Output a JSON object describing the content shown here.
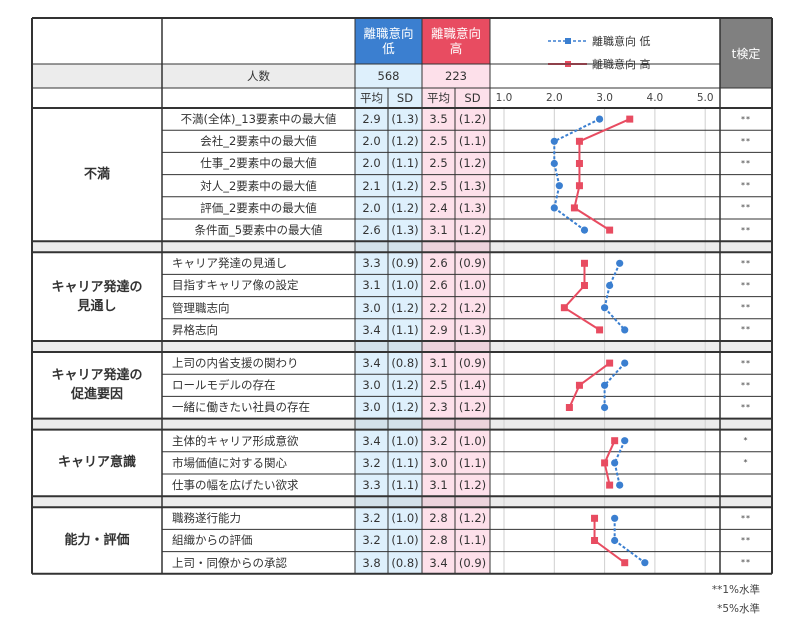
{
  "header": {
    "group_low_label": "離職意向\n低",
    "group_low_line1": "離職意向",
    "group_low_line2": "低",
    "group_high_line1": "離職意向",
    "group_high_line2": "高",
    "n_label": "人数",
    "n_low": "568",
    "n_high": "223",
    "mean_label": "平均",
    "sd_label": "SD",
    "ttest_label": "t検定",
    "legend_low": "離職意向 低",
    "legend_high": "離職意向 高",
    "axis_ticks": [
      "1.0",
      "2.0",
      "3.0",
      "4.0",
      "5.0"
    ]
  },
  "colors": {
    "low": "#3b7fd0",
    "high": "#e84c61",
    "low_bg": "#def0fc",
    "high_bg": "#fde0ea",
    "ttest_header": "#808080"
  },
  "groups": [
    {
      "category": "不満",
      "items": [
        {
          "label": "不満(全体)_13要素中の最大値",
          "low_mean": "2.9",
          "low_sd": "(1.3)",
          "high_mean": "3.5",
          "high_sd": "(1.2)",
          "sig": "**"
        },
        {
          "label": "会社_2要素中の最大値",
          "low_mean": "2.0",
          "low_sd": "(1.2)",
          "high_mean": "2.5",
          "high_sd": "(1.1)",
          "sig": "**"
        },
        {
          "label": "仕事_2要素中の最大値",
          "low_mean": "2.0",
          "low_sd": "(1.1)",
          "high_mean": "2.5",
          "high_sd": "(1.2)",
          "sig": "**"
        },
        {
          "label": "対人_2要素中の最大値",
          "low_mean": "2.1",
          "low_sd": "(1.2)",
          "high_mean": "2.5",
          "high_sd": "(1.3)",
          "sig": "**"
        },
        {
          "label": "評価_2要素中の最大値",
          "low_mean": "2.0",
          "low_sd": "(1.2)",
          "high_mean": "2.4",
          "high_sd": "(1.3)",
          "sig": "**"
        },
        {
          "label": "条件面_5要素中の最大値",
          "low_mean": "2.6",
          "low_sd": "(1.3)",
          "high_mean": "3.1",
          "high_sd": "(1.2)",
          "sig": "**"
        }
      ]
    },
    {
      "category": "キャリア発達の見通し",
      "category_line1": "キャリア発達の",
      "category_line2": "見通し",
      "items": [
        {
          "label": "キャリア発達の見通し",
          "low_mean": "3.3",
          "low_sd": "(0.9)",
          "high_mean": "2.6",
          "high_sd": "(0.9)",
          "sig": "**"
        },
        {
          "label": "目指すキャリア像の設定",
          "low_mean": "3.1",
          "low_sd": "(1.0)",
          "high_mean": "2.6",
          "high_sd": "(1.0)",
          "sig": "**"
        },
        {
          "label": "管理職志向",
          "low_mean": "3.0",
          "low_sd": "(1.2)",
          "high_mean": "2.2",
          "high_sd": "(1.2)",
          "sig": "**"
        },
        {
          "label": "昇格志向",
          "low_mean": "3.4",
          "low_sd": "(1.1)",
          "high_mean": "2.9",
          "high_sd": "(1.3)",
          "sig": "**"
        }
      ]
    },
    {
      "category": "キャリア発達の促進要因",
      "category_line1": "キャリア発達の",
      "category_line2": "促進要因",
      "items": [
        {
          "label": "上司の内省支援の関わり",
          "low_mean": "3.4",
          "low_sd": "(0.8)",
          "high_mean": "3.1",
          "high_sd": "(0.9)",
          "sig": "**"
        },
        {
          "label": "ロールモデルの存在",
          "low_mean": "3.0",
          "low_sd": "(1.2)",
          "high_mean": "2.5",
          "high_sd": "(1.4)",
          "sig": "**"
        },
        {
          "label": "一緒に働きたい社員の存在",
          "low_mean": "3.0",
          "low_sd": "(1.2)",
          "high_mean": "2.3",
          "high_sd": "(1.2)",
          "sig": "**"
        }
      ]
    },
    {
      "category": "キャリア意識",
      "items": [
        {
          "label": "主体的キャリア形成意欲",
          "low_mean": "3.4",
          "low_sd": "(1.0)",
          "high_mean": "3.2",
          "high_sd": "(1.0)",
          "sig": "*"
        },
        {
          "label": "市場価値に対する関心",
          "low_mean": "3.2",
          "low_sd": "(1.1)",
          "high_mean": "3.0",
          "high_sd": "(1.1)",
          "sig": "*"
        },
        {
          "label": "仕事の幅を広げたい欲求",
          "low_mean": "3.3",
          "low_sd": "(1.1)",
          "high_mean": "3.1",
          "high_sd": "(1.2)",
          "sig": ""
        }
      ]
    },
    {
      "category": "能力・評価",
      "items": [
        {
          "label": "職務遂行能力",
          "low_mean": "3.2",
          "low_sd": "(1.0)",
          "high_mean": "2.8",
          "high_sd": "(1.2)",
          "sig": "**"
        },
        {
          "label": "組織からの評価",
          "low_mean": "3.2",
          "low_sd": "(1.0)",
          "high_mean": "2.8",
          "high_sd": "(1.1)",
          "sig": "**"
        },
        {
          "label": "上司・同僚からの承認",
          "low_mean": "3.8",
          "low_sd": "(0.8)",
          "high_mean": "3.4",
          "high_sd": "(0.9)",
          "sig": "**"
        }
      ]
    }
  ],
  "footnotes": {
    "sig1": "**1%水準",
    "sig5": "*5%水準"
  },
  "chart_data": {
    "type": "line",
    "title": "",
    "xlabel": "",
    "ylabel": "",
    "orientation": "horizontal-profile",
    "xlim": [
      1.0,
      5.0
    ],
    "x_ticks": [
      "1.0",
      "2.0",
      "3.0",
      "4.0",
      "5.0"
    ],
    "grid": true,
    "legend_position": "top",
    "categories": [
      "不満(全体)_13要素中の最大値",
      "会社_2要素中の最大値",
      "仕事_2要素中の最大値",
      "対人_2要素中の最大値",
      "評価_2要素中の最大値",
      "条件面_5要素中の最大値",
      "キャリア発達の見通し",
      "目指すキャリア像の設定",
      "管理職志向",
      "昇格志向",
      "上司の内省支援の関わり",
      "ロールモデルの存在",
      "一緒に働きたい社員の存在",
      "主体的キャリア形成意欲",
      "市場価値に対する関心",
      "仕事の幅を広げたい欲求",
      "職務遂行能力",
      "組織からの評価",
      "上司・同僚からの承認"
    ],
    "series": [
      {
        "name": "離職意向 低",
        "style": "dashed, circle markers",
        "color": "#3b7fd0",
        "values": [
          2.9,
          2.0,
          2.0,
          2.1,
          2.0,
          2.6,
          3.3,
          3.1,
          3.0,
          3.4,
          3.4,
          3.0,
          3.0,
          3.4,
          3.2,
          3.3,
          3.2,
          3.2,
          3.8
        ]
      },
      {
        "name": "離職意向 高",
        "style": "solid, square markers",
        "color": "#e84c61",
        "values": [
          3.5,
          2.5,
          2.5,
          2.5,
          2.4,
          3.1,
          2.6,
          2.6,
          2.2,
          2.9,
          3.1,
          2.5,
          2.3,
          3.2,
          3.0,
          3.1,
          2.8,
          2.8,
          3.4
        ]
      }
    ],
    "sd_low": [
      1.3,
      1.2,
      1.1,
      1.2,
      1.2,
      1.3,
      0.9,
      1.0,
      1.2,
      1.1,
      0.8,
      1.2,
      1.2,
      1.0,
      1.1,
      1.1,
      1.0,
      1.0,
      0.8
    ],
    "sd_high": [
      1.2,
      1.1,
      1.2,
      1.3,
      1.3,
      1.2,
      0.9,
      1.0,
      1.2,
      1.3,
      0.9,
      1.4,
      1.2,
      1.0,
      1.1,
      1.2,
      1.2,
      1.1,
      0.9
    ],
    "n": {
      "離職意向 低": 568,
      "離職意向 高": 223
    },
    "significance": [
      "**",
      "**",
      "**",
      "**",
      "**",
      "**",
      "**",
      "**",
      "**",
      "**",
      "**",
      "**",
      "**",
      "*",
      "*",
      "",
      "**",
      "**",
      "**"
    ],
    "annotations": [
      "**1%水準",
      "*5%水準"
    ]
  }
}
